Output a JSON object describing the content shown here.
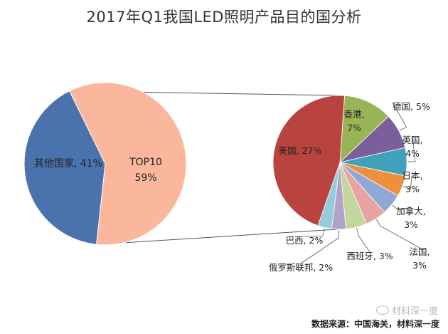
{
  "title": "2017年Q1我国LED照明产品目的国分析",
  "source": "数据来源：中国海关，材料深一度",
  "watermark": "材料深一度",
  "chart_data": [
    {
      "type": "pie",
      "categories": [
        "其他国家",
        "TOP10"
      ],
      "values": [
        41,
        59
      ],
      "labels": [
        "其他国家, 41%",
        "TOP10\n59%"
      ],
      "colors": [
        "#4a72ad",
        "#fbb79b"
      ]
    },
    {
      "type": "pie",
      "categories": [
        "美国",
        "香港",
        "德国",
        "英国",
        "日本",
        "加拿大",
        "法国",
        "西班牙",
        "俄罗斯联邦",
        "巴西"
      ],
      "values": [
        27,
        7,
        5,
        4,
        3,
        3,
        3,
        3,
        2,
        2
      ],
      "labels": [
        "美国, 27%",
        "香港,\n7%",
        "德国, 5%",
        "英国,\n4%",
        "日本,\n3%",
        "加拿大,\n3%",
        "法国,\n3%",
        "西班牙, 3%",
        "俄罗斯联邦, 2%",
        "巴西, 2%"
      ],
      "colors": [
        "#b8433f",
        "#98b455",
        "#7a5f9c",
        "#3fa2ba",
        "#ee8f3d",
        "#8fa9d6",
        "#e6a3a1",
        "#c3d69b",
        "#b3a2c7",
        "#93cddd"
      ]
    }
  ]
}
